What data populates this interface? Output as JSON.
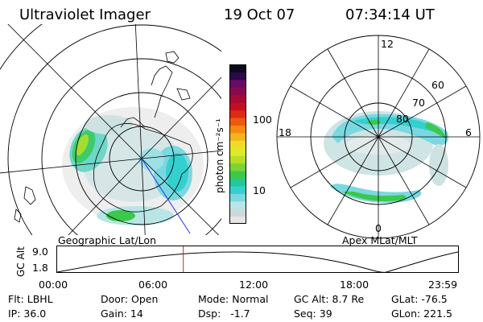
{
  "header": {
    "instrument": "Ultraviolet Imager",
    "date": "19 Oct 07",
    "time": "07:34:14 UT"
  },
  "colorbar": {
    "label": "photon cm⁻²s⁻¹",
    "scale": "log",
    "ticks": [
      "100",
      "10"
    ],
    "colors": [
      "#e6e6e6",
      "#cfd8d8",
      "#b8e6e6",
      "#7ad8e0",
      "#34d0d0",
      "#22c89a",
      "#3cc84a",
      "#7ad434",
      "#b8de28",
      "#dcea28",
      "#f0dc28",
      "#f6b41c",
      "#f68a10",
      "#ee5810",
      "#dc2a14",
      "#c21022",
      "#a60a36",
      "#880a4c",
      "#660c66",
      "#2a0a48",
      "#0c0a1e"
    ]
  },
  "left_panel": {
    "caption": "Geographic Lat/Lon"
  },
  "right_panel": {
    "caption": "Apex MLat/MLT",
    "mlt_labels": {
      "top": "12",
      "left": "18",
      "right": "6",
      "bottom": "0"
    },
    "lat_labels": [
      "60",
      "70",
      "80"
    ]
  },
  "gc_alt_plot": {
    "ylabel": "GC Alt",
    "yticks": [
      "9.0",
      "1.8"
    ],
    "xticks": [
      "00:00",
      "06:00",
      "12:00",
      "18:00",
      "23:59"
    ],
    "current_time_hours": 7.57
  },
  "info": {
    "flt": "Flt: LBHL",
    "ip": "IP: 36.0",
    "door": "Door: Open",
    "gain": "Gain: 14",
    "mode": "Mode: Normal",
    "dsp": "Dsp:   -1.7",
    "gc_alt": "GC Alt: 8.7 Re",
    "seq": "Seq: 39",
    "glat": "GLat: -76.5",
    "glon": "GLon: 221.5"
  }
}
